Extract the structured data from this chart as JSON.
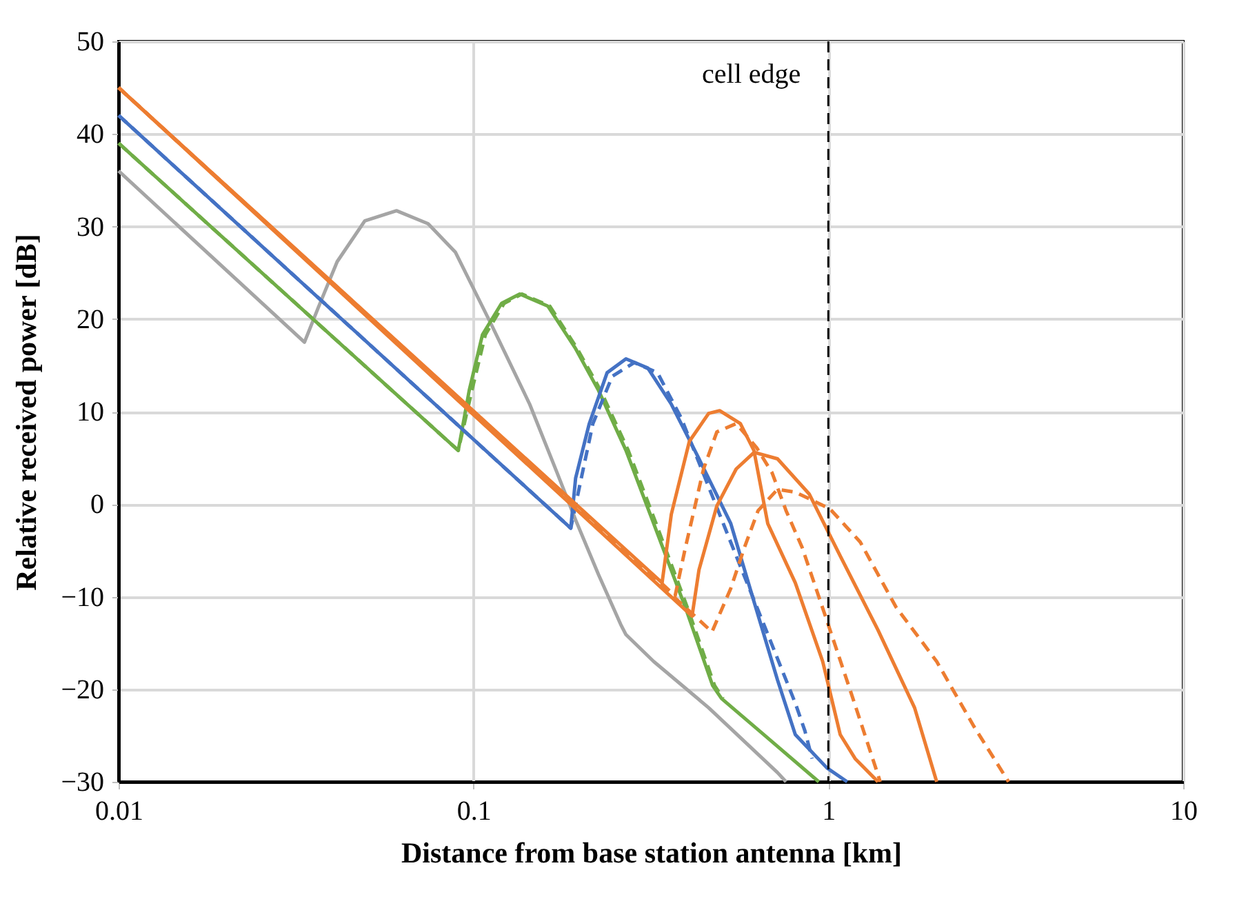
{
  "chart_data": {
    "type": "line",
    "xlabel": "Distance from base station antenna [km]",
    "ylabel": "Relative received power [dB]",
    "log": "x",
    "xlim": [
      0.01,
      10
    ],
    "xticks": [
      0.01,
      0.1,
      1,
      10
    ],
    "ylim": [
      -30,
      50
    ],
    "yticks": [
      -30,
      -20,
      -10,
      0,
      10,
      20,
      30,
      40,
      50
    ],
    "grid": true,
    "marker": "none",
    "ref_lines": [
      {
        "axis": "x",
        "value": 1,
        "label": "cell edge",
        "color": "#000000",
        "line_style": "dashed"
      }
    ],
    "series": [
      {
        "color": "#a5a5a5",
        "line_style": "solid",
        "x": [
          0.01,
          0.0334,
          0.0365,
          0.0413,
          0.0494,
          0.0607,
          0.0745,
          0.089,
          0.113,
          0.144,
          0.172,
          0.194,
          0.225,
          0.26,
          0.269,
          0.322,
          0.46,
          0.719,
          0.76
        ],
        "values": [
          36,
          17.5,
          21.2,
          26.2,
          30.6,
          31.7,
          30.3,
          27.2,
          19.2,
          10.8,
          3.4,
          -1.7,
          -7.6,
          -13,
          -14.1,
          -17,
          -22,
          -29,
          -30
        ]
      },
      {
        "color": "#70ad47",
        "line_style": "solid",
        "x": [
          0.01,
          0.0906,
          0.0973,
          0.106,
          0.12,
          0.135,
          0.162,
          0.194,
          0.225,
          0.269,
          0.322,
          0.395,
          0.472,
          0.5,
          0.658,
          0.94
        ],
        "values": [
          39,
          5.8,
          12.3,
          18.3,
          21.7,
          22.7,
          21.4,
          16.8,
          12.3,
          5.8,
          -2.1,
          -11.1,
          -19.6,
          -21,
          -24.9,
          -30
        ]
      },
      {
        "color": "#70ad47",
        "line_style": "dashed",
        "x": [
          0.01,
          0.0906,
          0.099,
          0.108,
          0.122,
          0.137,
          0.164,
          0.196,
          0.228,
          0.273,
          0.327,
          0.4,
          0.478,
          0.505
        ],
        "values": [
          39,
          5.8,
          12.3,
          18.3,
          21.7,
          22.7,
          21.4,
          16.8,
          12.3,
          5.8,
          -2.1,
          -11.1,
          -19.6,
          -21
        ]
      },
      {
        "color": "#4472c4",
        "line_style": "solid",
        "x": [
          0.01,
          0.188,
          0.194,
          0.212,
          0.238,
          0.269,
          0.31,
          0.361,
          0.432,
          0.531,
          0.618,
          0.719,
          0.807,
          0.991,
          1.13
        ],
        "values": [
          42,
          -2.6,
          2.8,
          8.7,
          14.2,
          15.7,
          14.7,
          10.8,
          4.9,
          -2.1,
          -10.6,
          -19,
          -24.9,
          -28.5,
          -30
        ]
      },
      {
        "color": "#4472c4",
        "line_style": "dashed",
        "x": [
          0.01,
          0.188,
          0.199,
          0.217,
          0.246,
          0.284,
          0.33,
          0.385,
          0.55,
          0.658,
          0.807,
          0.859,
          0.9
        ],
        "values": [
          42,
          -2.6,
          1.9,
          8.7,
          13.8,
          15.3,
          14.2,
          9.3,
          -5.6,
          -13,
          -21.5,
          -24.5,
          -27.5
        ]
      },
      {
        "color": "#ed7d31",
        "line_style": "solid",
        "x": [
          0.01,
          0.34,
          0.361,
          0.406,
          0.46,
          0.494,
          0.565,
          0.617,
          0.675,
          0.807,
          0.964,
          1.08,
          1.19,
          1.38
        ],
        "values": [
          45,
          -8.5,
          -1.1,
          6.8,
          9.8,
          10.1,
          8.7,
          5.8,
          -2.1,
          -8.5,
          -17,
          -24.9,
          -27.5,
          -30
        ]
      },
      {
        "color": "#ed7d31",
        "line_style": "solid",
        "x": [
          0.01,
          0.413,
          0.432,
          0.485,
          0.55,
          0.618,
          0.719,
          0.883,
          1.08,
          1.38,
          1.75,
          2.02
        ],
        "values": [
          45,
          -12.1,
          -7.1,
          -0.2,
          3.8,
          5.6,
          4.9,
          1.1,
          -5.6,
          -13.6,
          -22,
          -30
        ]
      },
      {
        "color": "#ed7d31",
        "line_style": "dashed",
        "x": [
          0.01,
          0.37,
          0.395,
          0.445,
          0.485,
          0.55,
          0.628,
          0.694,
          0.76,
          0.844,
          0.991,
          1.15,
          1.36,
          1.4
        ],
        "values": [
          45,
          -9.9,
          -4.8,
          3.8,
          7.8,
          8.7,
          6.1,
          3.4,
          -0.7,
          -4.7,
          -12.6,
          -20,
          -28.5,
          -30
        ]
      },
      {
        "color": "#ed7d31",
        "line_style": "dashed",
        "x": [
          0.01,
          0.47,
          0.531,
          0.58,
          0.634,
          0.719,
          0.807,
          1.01,
          1.23,
          1.55,
          2.02,
          2.57,
          3.22
        ],
        "values": [
          45,
          -13.8,
          -9.1,
          -4.7,
          -0.7,
          1.6,
          1.3,
          -0.5,
          -4.1,
          -11.1,
          -17,
          -24,
          -30
        ]
      }
    ]
  }
}
